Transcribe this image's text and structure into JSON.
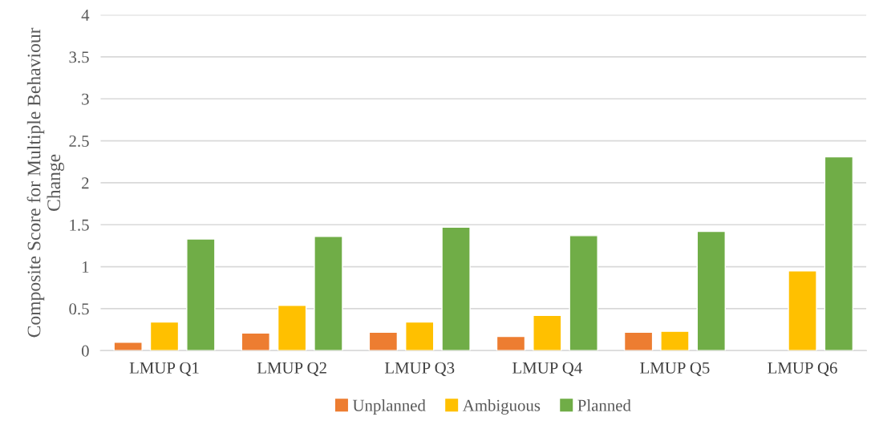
{
  "chart_data": {
    "type": "bar",
    "ylabel": "Composite Score for Multiple Behaviour Change",
    "categories": [
      "LMUP Q1",
      "LMUP Q2",
      "LMUP Q3",
      "LMUP Q4",
      "LMUP Q5",
      "LMUP Q6"
    ],
    "series": [
      {
        "name": "Unplanned",
        "color": "#ed7d31",
        "values": [
          0.1,
          0.21,
          0.22,
          0.17,
          0.22,
          null
        ]
      },
      {
        "name": "Ambiguous",
        "color": "#ffc000",
        "values": [
          0.34,
          0.54,
          0.34,
          0.42,
          0.23,
          0.95
        ]
      },
      {
        "name": "Planned",
        "color": "#70ad47",
        "values": [
          1.33,
          1.36,
          1.47,
          1.37,
          1.42,
          2.31
        ]
      }
    ],
    "ylim": [
      0,
      4
    ],
    "yticks": [
      0,
      {
        "value": 0.5,
        "label": "0.5"
      },
      1,
      {
        "value": 1.5,
        "label": "1.5"
      },
      2,
      {
        "value": 2.5,
        "label": "2.5"
      },
      3,
      {
        "value": 3.5,
        "label": "3.5"
      },
      4
    ],
    "grid": "y",
    "legend": "bottom"
  }
}
